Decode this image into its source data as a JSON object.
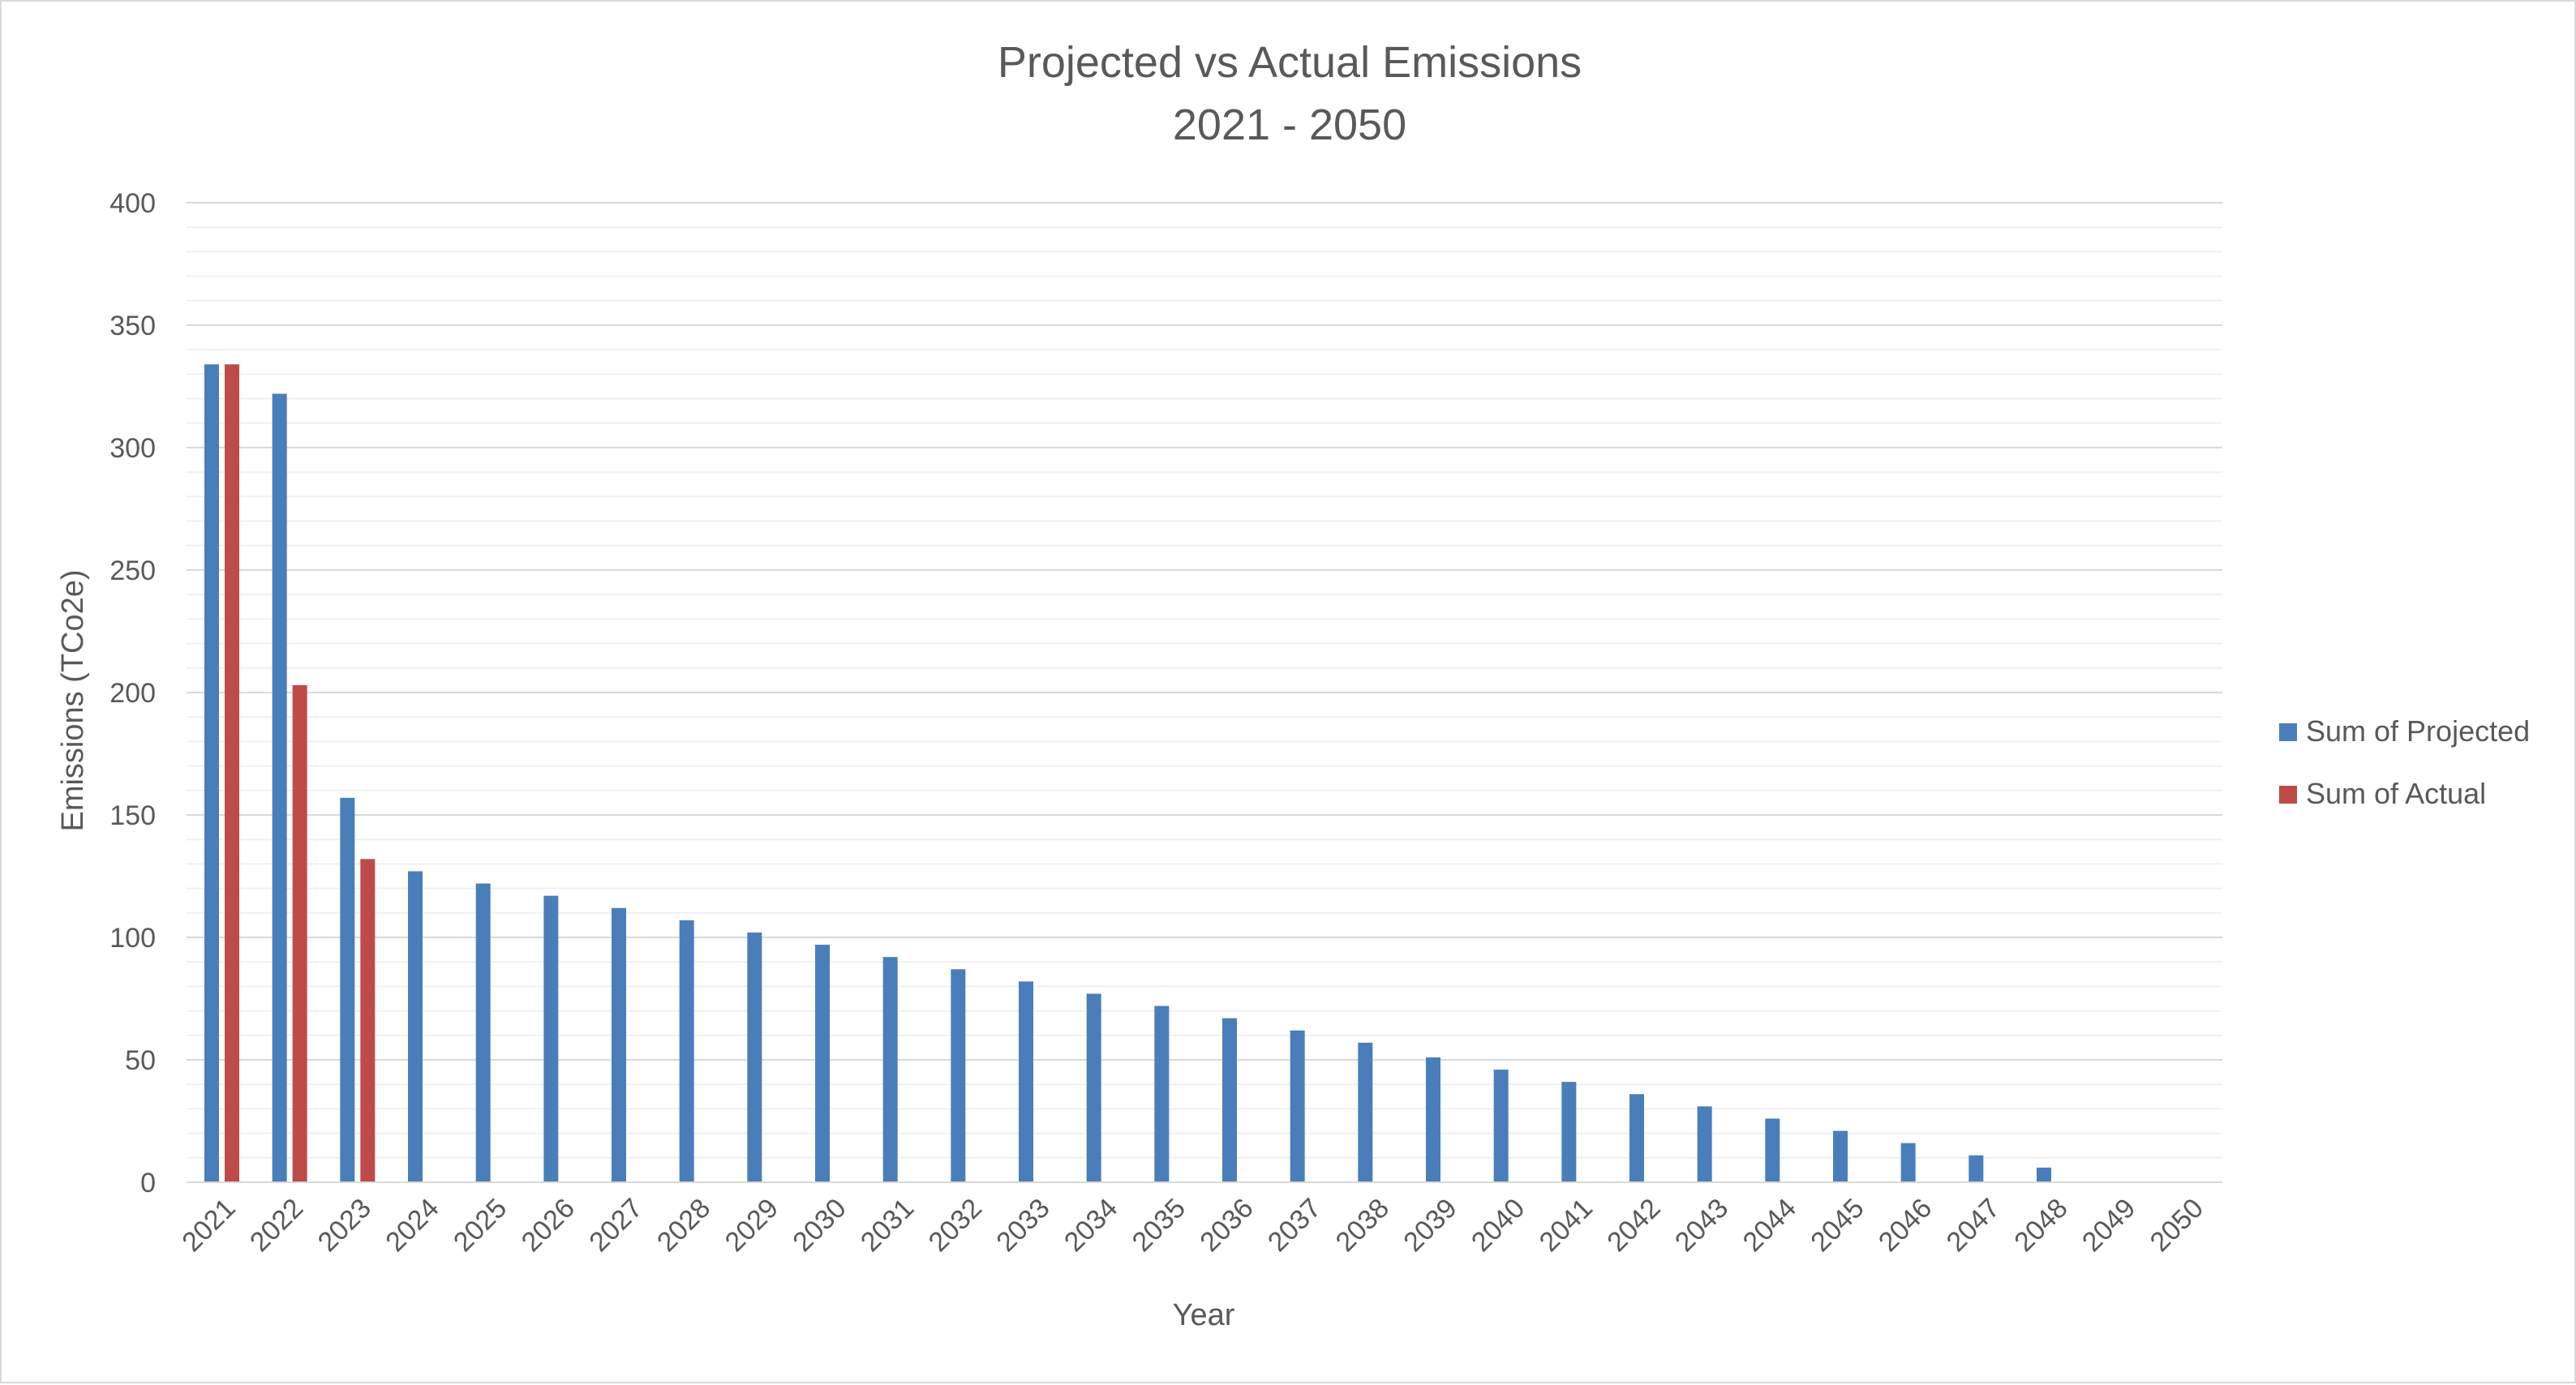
{
  "colors": {
    "projected": "#4a7ebb",
    "actual": "#be4b48",
    "gridline_major": "#d9d9d9",
    "gridline_minor": "#f0f0f0",
    "axis_line": "#d9d9d9",
    "text": "#595959",
    "border": "#d9d9d9"
  },
  "chart_data": {
    "type": "bar",
    "title": "Projected vs Actual Emissions",
    "subtitle": "2021 - 2050",
    "xlabel": "Year",
    "ylabel": "Emissions (TCo2e)",
    "ylim": [
      0,
      400
    ],
    "yticks": [
      0,
      50,
      100,
      150,
      200,
      250,
      300,
      350,
      400
    ],
    "grid": true,
    "legend_position": "right",
    "categories": [
      "2021",
      "2022",
      "2023",
      "2024",
      "2025",
      "2026",
      "2027",
      "2028",
      "2029",
      "2030",
      "2031",
      "2032",
      "2033",
      "2034",
      "2035",
      "2036",
      "2037",
      "2038",
      "2039",
      "2040",
      "2041",
      "2042",
      "2043",
      "2044",
      "2045",
      "2046",
      "2047",
      "2048",
      "2049",
      "2050"
    ],
    "series": [
      {
        "name": "Sum of Projected",
        "color": "#4a7ebb",
        "values": [
          334,
          322,
          157,
          127,
          122,
          117,
          112,
          107,
          102,
          97,
          92,
          87,
          82,
          77,
          72,
          67,
          62,
          57,
          51,
          46,
          41,
          36,
          31,
          26,
          21,
          16,
          11,
          6,
          null,
          null
        ]
      },
      {
        "name": "Sum of Actual",
        "color": "#be4b48",
        "values": [
          334,
          203,
          132,
          null,
          null,
          null,
          null,
          null,
          null,
          null,
          null,
          null,
          null,
          null,
          null,
          null,
          null,
          null,
          null,
          null,
          null,
          null,
          null,
          null,
          null,
          null,
          null,
          null,
          null,
          null
        ]
      }
    ]
  }
}
